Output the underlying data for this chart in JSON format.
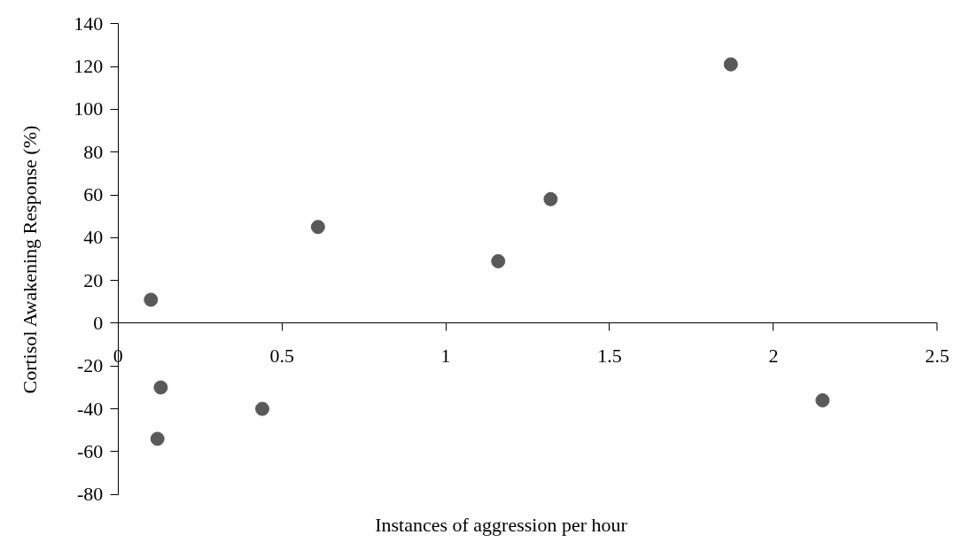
{
  "chart_data": {
    "type": "scatter",
    "xlabel": "Instances of aggression per hour",
    "ylabel": "Cortisol Awakening Response (%)",
    "x": [
      0.1,
      0.61,
      0.13,
      0.44,
      0.12,
      1.16,
      1.32,
      1.87,
      2.15
    ],
    "values": [
      11,
      45,
      -30,
      -40,
      -54,
      29,
      58,
      121,
      -36
    ],
    "color": "#595959",
    "marker": "circle",
    "grid": false,
    "legend": false,
    "xlim": [
      0,
      2.5
    ],
    "xticks": [
      0,
      0.5,
      1,
      1.5,
      2,
      2.5
    ],
    "ylim": [
      -80,
      140
    ],
    "yticks": [
      -80,
      -60,
      -40,
      -20,
      0,
      20,
      40,
      60,
      80,
      100,
      120,
      140
    ]
  }
}
